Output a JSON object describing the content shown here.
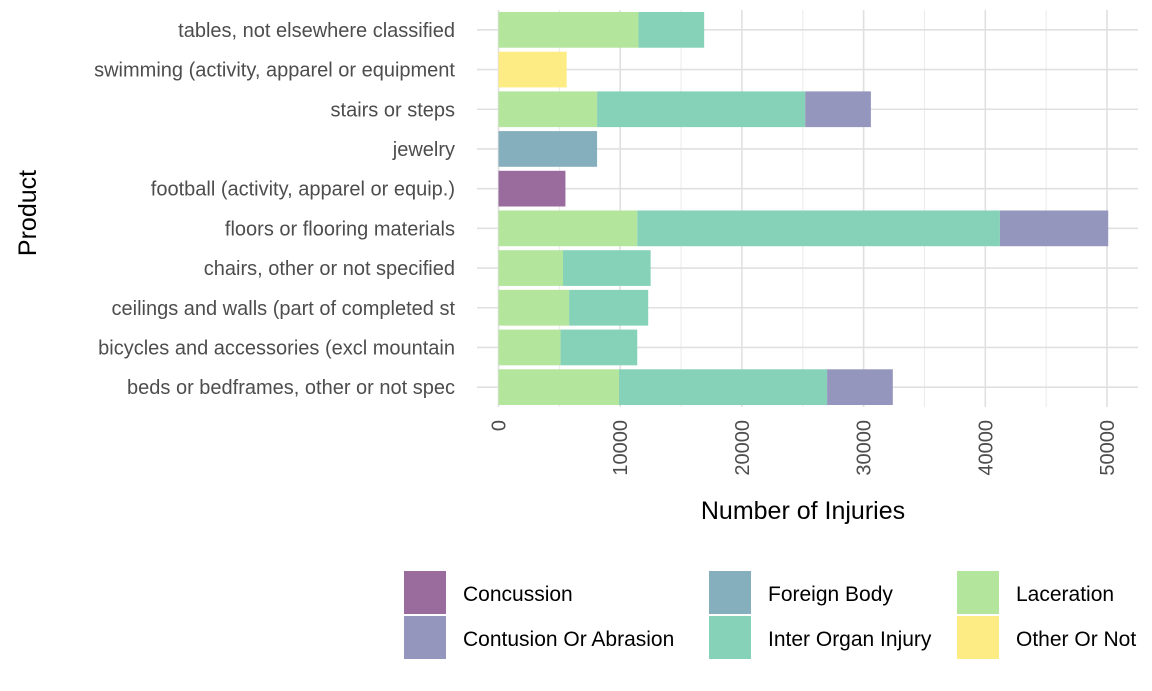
{
  "chart_data": {
    "type": "bar",
    "orientation": "horizontal",
    "stacked": true,
    "xlabel": "Number of Injuries",
    "ylabel": "Product",
    "xlim": [
      0,
      52500
    ],
    "xticks": [
      0,
      10000,
      20000,
      30000,
      40000,
      50000
    ],
    "grid": true,
    "legend_position": "bottom",
    "categories": [
      "beds or bedframes, other or not spec",
      "bicycles and accessories (excl mountain",
      "ceilings and walls (part of completed st",
      "chairs, other or not specified",
      "floors or flooring materials",
      "football (activity, apparel or equip.)",
      "jewelry",
      "stairs or steps",
      "swimming (activity, apparel or equipment",
      "tables, not elsewhere classified"
    ],
    "series": [
      {
        "name": "Laceration",
        "color": "#b4e59c",
        "values": [
          9900,
          5100,
          5800,
          5300,
          11400,
          0,
          0,
          8100,
          0,
          11500
        ]
      },
      {
        "name": "Inter Organ Injury",
        "color": "#86d2b8",
        "values": [
          17100,
          6300,
          6500,
          7200,
          29800,
          0,
          0,
          17100,
          0,
          5400
        ]
      },
      {
        "name": "Contusion Or Abrasion",
        "color": "#9596bd",
        "values": [
          5400,
          0,
          0,
          0,
          8900,
          0,
          0,
          5400,
          0,
          0
        ]
      },
      {
        "name": "Foreign Body",
        "color": "#86afbd",
        "values": [
          0,
          0,
          0,
          0,
          0,
          0,
          8100,
          0,
          0,
          0
        ]
      },
      {
        "name": "Concussion",
        "color": "#9a6c9e",
        "values": [
          0,
          0,
          0,
          0,
          0,
          5500,
          0,
          0,
          0,
          0
        ]
      },
      {
        "name": "Other Or Not",
        "color": "#fdec84",
        "values": [
          0,
          0,
          0,
          0,
          0,
          0,
          0,
          0,
          5600,
          0
        ]
      }
    ],
    "legend_entries": [
      {
        "name": "Concussion",
        "color": "#9a6c9e"
      },
      {
        "name": "Contusion Or Abrasion",
        "color": "#9596bd"
      },
      {
        "name": "Foreign Body",
        "color": "#86afbd"
      },
      {
        "name": "Inter Organ Injury",
        "color": "#86d2b8"
      },
      {
        "name": "Laceration",
        "color": "#b4e59c"
      },
      {
        "name": "Other Or Not",
        "color": "#fdec84"
      }
    ]
  }
}
